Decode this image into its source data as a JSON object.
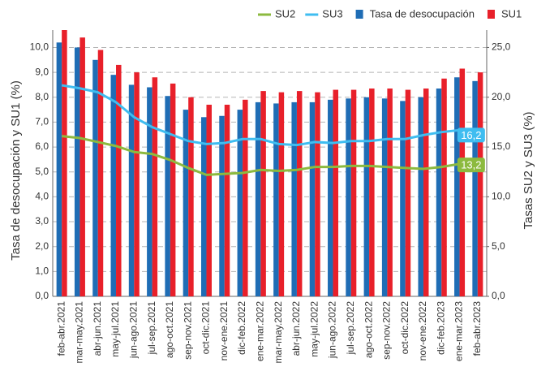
{
  "chart_data": {
    "type": "bar_line",
    "y_label": "Tasa de desocupación y SU1 (%)",
    "y2_label": "Tasas SU2 y SU3 (%)",
    "categories": [
      "feb-abr.2021",
      "mar-may.2021",
      "abr-jun.2021",
      "may-jul.2021",
      "jun-ago.2021",
      "jul-sep.2021",
      "ago-oct.2021",
      "sep-nov.2021",
      "oct-dic.2021",
      "nov-ene.2021",
      "dic-feb.2022",
      "ene-mar.2022",
      "mar-may.2022",
      "abr-jun.2022",
      "may-jul.2022",
      "jun-ago.2022",
      "jul-sep.2022",
      "ago-oct.2022",
      "sep-nov.2022",
      "oct-dic.2022",
      "nov-ene.2022",
      "dic-feb.2023",
      "ene-mar.2023",
      "feb-abr.2023"
    ],
    "series": [
      {
        "name": "SU2",
        "kind": "line",
        "axis": "y2",
        "color": "#8cba3f",
        "values": [
          16.1,
          15.9,
          15.5,
          15.1,
          14.5,
          14.3,
          13.7,
          12.9,
          12.2,
          12.3,
          12.4,
          12.7,
          12.6,
          12.7,
          13.0,
          13.0,
          13.1,
          13.1,
          13.0,
          12.9,
          12.8,
          13.0,
          13.3,
          13.2
        ],
        "value_labels": [
          null,
          null,
          null,
          null,
          null,
          null,
          null,
          null,
          null,
          null,
          null,
          null,
          null,
          null,
          null,
          null,
          null,
          null,
          null,
          null,
          null,
          null,
          null,
          "13,2"
        ]
      },
      {
        "name": "SU3",
        "kind": "line",
        "axis": "y2",
        "color": "#3fbdf0",
        "values": [
          21.2,
          20.9,
          20.5,
          19.5,
          18.0,
          17.0,
          16.3,
          15.6,
          15.3,
          15.4,
          15.8,
          15.8,
          15.3,
          15.2,
          15.5,
          15.4,
          15.6,
          15.6,
          15.8,
          15.8,
          16.2,
          16.5,
          16.7,
          16.2
        ],
        "value_labels": [
          null,
          null,
          null,
          null,
          null,
          null,
          null,
          null,
          null,
          null,
          null,
          null,
          null,
          null,
          null,
          null,
          null,
          null,
          null,
          null,
          null,
          null,
          null,
          "16,2"
        ]
      },
      {
        "name": "Tasa de desocupación",
        "kind": "bar",
        "color": "#1f6db5",
        "values": [
          10.2,
          10.0,
          9.5,
          8.9,
          8.5,
          8.4,
          8.05,
          7.5,
          7.2,
          7.25,
          7.5,
          7.8,
          7.75,
          7.8,
          7.8,
          7.9,
          7.95,
          8.0,
          7.95,
          7.85,
          8.0,
          8.35,
          8.8,
          8.65
        ]
      },
      {
        "name": "SU1",
        "kind": "bar",
        "color": "#e8202a",
        "values": [
          10.7,
          10.4,
          9.9,
          9.3,
          9.0,
          8.8,
          8.55,
          8.0,
          7.7,
          7.7,
          7.9,
          8.25,
          8.2,
          8.25,
          8.2,
          8.3,
          8.3,
          8.35,
          8.35,
          8.3,
          8.35,
          8.75,
          9.15,
          9.0
        ]
      }
    ],
    "ylim": [
      0,
      10.7
    ],
    "yticks": [
      {
        "value": 0,
        "label": "0,0"
      },
      {
        "value": 1,
        "label": "1,0"
      },
      {
        "value": 2,
        "label": "2,0"
      },
      {
        "value": 3,
        "label": "3,0"
      },
      {
        "value": 4,
        "label": "4,0"
      },
      {
        "value": 5,
        "label": "5,0"
      },
      {
        "value": 6,
        "label": "6,0"
      },
      {
        "value": 7,
        "label": "7,0"
      },
      {
        "value": 8,
        "label": "8,0"
      },
      {
        "value": 9,
        "label": "9,0"
      },
      {
        "value": 10,
        "label": "10,0"
      }
    ],
    "y2lim": [
      0,
      26.75
    ],
    "y2ticks": [
      {
        "value": 0,
        "label": "0,0"
      },
      {
        "value": 5,
        "label": "5,0"
      },
      {
        "value": 10,
        "label": "10,0"
      },
      {
        "value": 15,
        "label": "15,0"
      },
      {
        "value": 20,
        "label": "20,0"
      },
      {
        "value": 25,
        "label": "25,0"
      }
    ],
    "grid": true,
    "legend": "top"
  }
}
